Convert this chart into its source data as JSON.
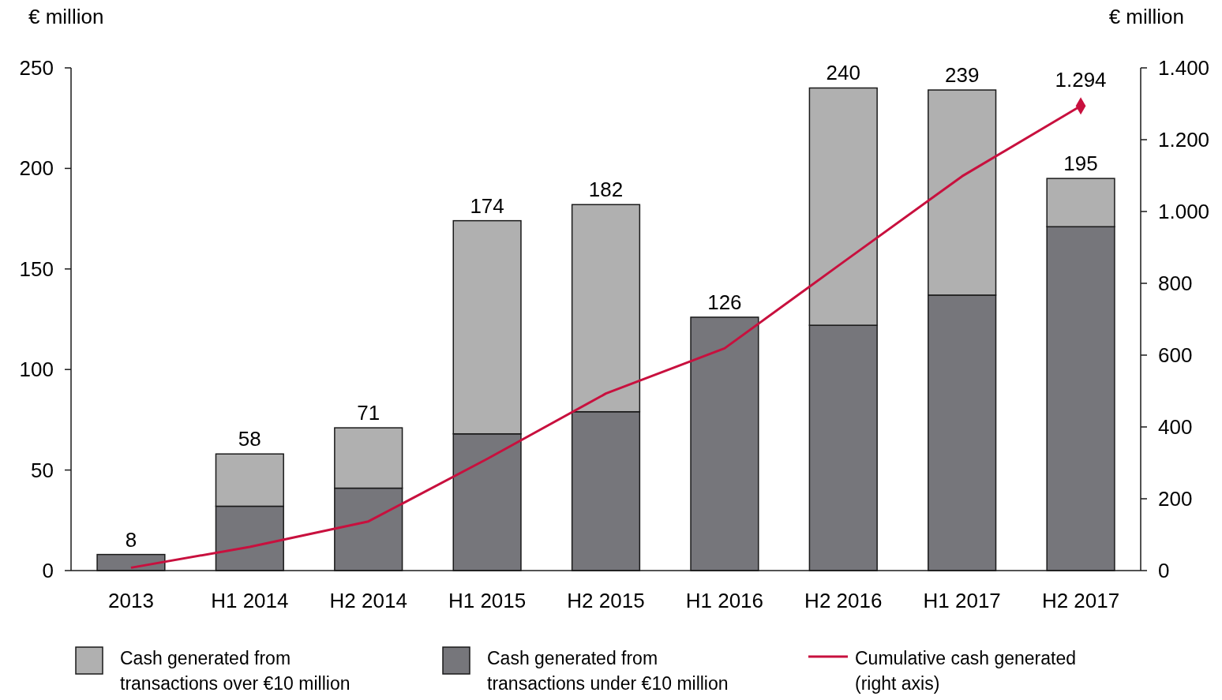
{
  "chart_data": {
    "type": "bar",
    "stacked": true,
    "ylabel": "€ million",
    "y2label": "€ million",
    "categories": [
      "2013",
      "H1 2014",
      "H2 2014",
      "H1 2015",
      "H2 2015",
      "H1 2016",
      "H2 2016",
      "H1 2017",
      "H2 2017"
    ],
    "series": [
      {
        "name": "Cash generated from transactions under €10 million",
        "color": "#76767b",
        "values": [
          8,
          32,
          41,
          68,
          79,
          126,
          122,
          137,
          171
        ]
      },
      {
        "name": "Cash generated from transactions over €10 million",
        "color": "#b0b0b0",
        "values": [
          0,
          26,
          30,
          106,
          103,
          0,
          118,
          102,
          24
        ]
      },
      {
        "type": "line",
        "axis": "y2",
        "name": "Cumulative cash generated (right axis)",
        "color": "#c8103e",
        "values": [
          8,
          66,
          137,
          311,
          493,
          619,
          859,
          1098,
          1294
        ]
      },
      {
        "type": "scatter",
        "axis": "y2",
        "marker": "diamond",
        "color": "#c8103e",
        "values": [
          null,
          null,
          null,
          null,
          null,
          null,
          null,
          null,
          1294
        ],
        "value_labels": [
          null,
          null,
          null,
          null,
          null,
          null,
          null,
          null,
          "1.294"
        ]
      }
    ],
    "totals": [
      "8",
      "58",
      "71",
      "174",
      "182",
      "126",
      "240",
      "239",
      "195"
    ],
    "ylim": [
      0,
      250
    ],
    "yticks": [
      0,
      50,
      100,
      150,
      200,
      250
    ],
    "y2lim": [
      0,
      1400
    ],
    "y2ticks": [
      0,
      200,
      400,
      600,
      800,
      {
        "value": 1000,
        "label": "1.000"
      },
      {
        "value": 1200,
        "label": "1.200"
      },
      {
        "value": 1400,
        "label": "1.400"
      }
    ],
    "legend": "bottom"
  }
}
